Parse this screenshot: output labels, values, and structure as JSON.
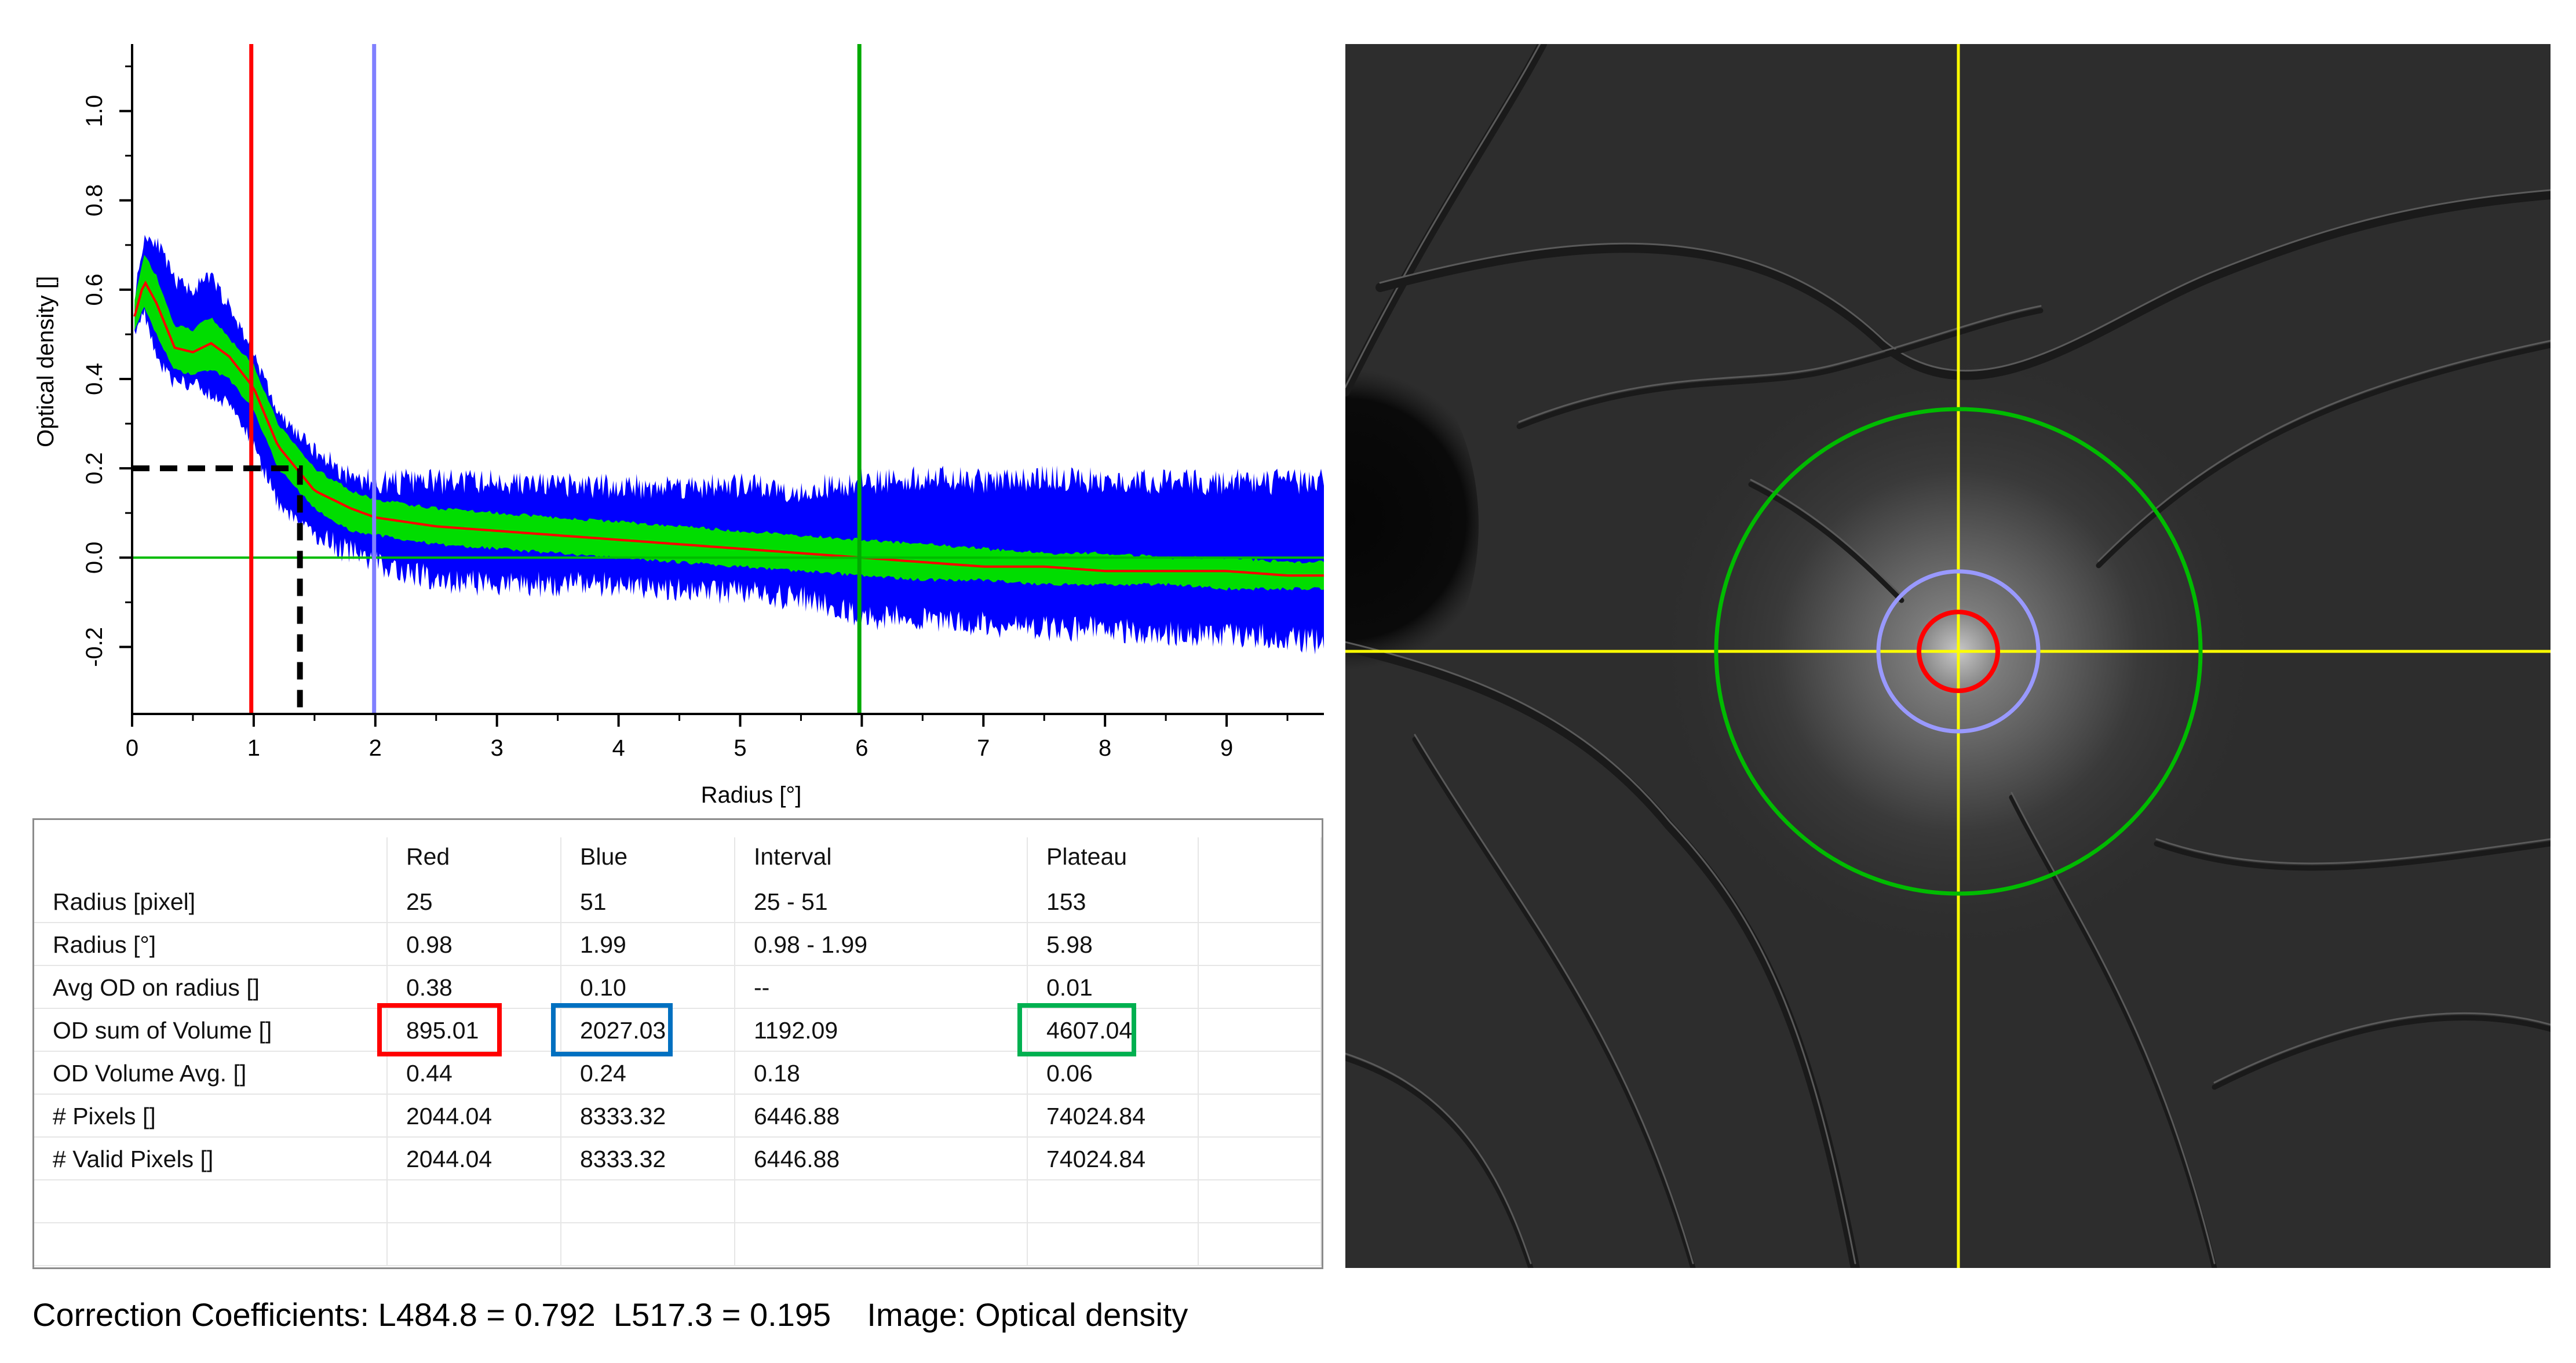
{
  "chart_data": {
    "type": "line",
    "xlabel": "Radius [°]",
    "ylabel": "Optical density []",
    "xlim": [
      0,
      9.8
    ],
    "ylim": [
      -0.35,
      1.15
    ],
    "x_ticks": [
      "0",
      "1",
      "2",
      "3",
      "4",
      "5",
      "6",
      "7",
      "8",
      "9"
    ],
    "y_ticks": [
      "-0.2",
      "0.0",
      "0.2",
      "0.4",
      "0.6",
      "0.8",
      "1.0"
    ],
    "series": [
      {
        "color": "#0000ff",
        "x": [
          0.0,
          0.1,
          0.2,
          0.35,
          0.5,
          0.65,
          0.8,
          1.0,
          1.2,
          1.5,
          1.8,
          2.0,
          2.5,
          3.0,
          3.5,
          4.0,
          4.5,
          5.0,
          5.5,
          6.0,
          6.5,
          7.0,
          7.5,
          8.0,
          8.5,
          9.0,
          9.5,
          9.8
        ],
        "upper": [
          0.55,
          0.72,
          0.71,
          0.62,
          0.6,
          0.63,
          0.56,
          0.46,
          0.32,
          0.24,
          0.18,
          0.17,
          0.17,
          0.17,
          0.16,
          0.16,
          0.16,
          0.16,
          0.15,
          0.17,
          0.18,
          0.17,
          0.18,
          0.17,
          0.17,
          0.17,
          0.17,
          0.17
        ],
        "lower": [
          0.5,
          0.55,
          0.45,
          0.39,
          0.39,
          0.36,
          0.35,
          0.25,
          0.12,
          0.05,
          0.01,
          -0.01,
          -0.05,
          -0.06,
          -0.06,
          -0.06,
          -0.07,
          -0.08,
          -0.09,
          -0.13,
          -0.14,
          -0.15,
          -0.16,
          -0.16,
          -0.17,
          -0.17,
          -0.18,
          -0.19
        ]
      },
      {
        "color": "#00dd00",
        "x": [
          0.0,
          0.1,
          0.2,
          0.35,
          0.5,
          0.65,
          0.8,
          1.0,
          1.2,
          1.5,
          1.8,
          2.0,
          2.5,
          3.0,
          3.5,
          4.0,
          4.5,
          5.0,
          5.5,
          6.0,
          6.5,
          7.0,
          7.5,
          8.0,
          8.5,
          9.0,
          9.5,
          9.8
        ],
        "upper": [
          0.55,
          0.68,
          0.63,
          0.52,
          0.51,
          0.54,
          0.49,
          0.43,
          0.3,
          0.2,
          0.15,
          0.13,
          0.11,
          0.1,
          0.09,
          0.08,
          0.07,
          0.06,
          0.05,
          0.04,
          0.03,
          0.02,
          0.01,
          0.01,
          0.0,
          0.0,
          -0.01,
          -0.01
        ],
        "lower": [
          0.5,
          0.56,
          0.5,
          0.42,
          0.41,
          0.42,
          0.4,
          0.33,
          0.2,
          0.11,
          0.06,
          0.05,
          0.03,
          0.02,
          0.01,
          0.0,
          -0.01,
          -0.02,
          -0.03,
          -0.04,
          -0.05,
          -0.05,
          -0.06,
          -0.06,
          -0.06,
          -0.07,
          -0.07,
          -0.07
        ]
      },
      {
        "color": "#ff0000",
        "x": [
          0.0,
          0.1,
          0.2,
          0.35,
          0.5,
          0.65,
          0.8,
          1.0,
          1.2,
          1.5,
          1.8,
          2.0,
          2.5,
          3.0,
          3.5,
          4.0,
          4.5,
          5.0,
          5.5,
          6.0,
          6.5,
          7.0,
          7.5,
          8.0,
          8.5,
          9.0,
          9.5,
          9.8
        ],
        "y": [
          0.52,
          0.62,
          0.57,
          0.47,
          0.46,
          0.48,
          0.45,
          0.38,
          0.25,
          0.15,
          0.11,
          0.09,
          0.07,
          0.06,
          0.05,
          0.04,
          0.03,
          0.02,
          0.01,
          0.0,
          -0.01,
          -0.02,
          -0.02,
          -0.03,
          -0.03,
          -0.03,
          -0.04,
          -0.04
        ]
      }
    ],
    "vlines": [
      {
        "x": 0.98,
        "color": "#ff0000"
      },
      {
        "x": 1.99,
        "color": "#8080ff"
      },
      {
        "x": 5.98,
        "color": "#00aa00"
      }
    ],
    "hline": {
      "y": 0.0,
      "color": "#00bb00"
    },
    "dashed_guide": {
      "x": 1.38,
      "y": 0.2,
      "color": "#000000"
    },
    "grid": false
  },
  "table": {
    "columns": [
      "",
      "Red",
      "Blue",
      "Interval",
      "Plateau",
      ""
    ],
    "rows": [
      [
        "Radius [pixel]",
        "25",
        "51",
        "25 - 51",
        "153",
        ""
      ],
      [
        "Radius [°]",
        "0.98",
        "1.99",
        "0.98 - 1.99",
        "5.98",
        ""
      ],
      [
        "Avg OD on radius []",
        "0.38",
        "0.10",
        "--",
        "0.01",
        ""
      ],
      [
        "OD sum of Volume []",
        "895.01",
        "2027.03",
        "1192.09",
        "4607.04",
        ""
      ],
      [
        "OD Volume Avg. []",
        "0.44",
        "0.24",
        "0.18",
        "0.06",
        ""
      ],
      [
        "# Pixels []",
        "2044.04",
        "8333.32",
        "6446.88",
        "74024.84",
        ""
      ],
      [
        "# Valid Pixels []",
        "2044.04",
        "8333.32",
        "6446.88",
        "74024.84",
        ""
      ],
      [
        "",
        "",
        "",
        "",
        "",
        ""
      ],
      [
        "",
        "",
        "",
        "",
        "",
        ""
      ]
    ],
    "highlights": [
      {
        "row": 3,
        "col": 1,
        "color": "#ff0000"
      },
      {
        "row": 3,
        "col": 2,
        "color": "#0070c0"
      },
      {
        "row": 3,
        "col": 4,
        "color": "#00b050"
      }
    ]
  },
  "fundus": {
    "crosshair_color": "#ffff00",
    "circles": [
      {
        "name": "red-circle",
        "color": "#ff0000"
      },
      {
        "name": "blue-circle",
        "color": "#9999ff"
      },
      {
        "name": "green-circle",
        "color": "#00bb00"
      }
    ]
  },
  "status": {
    "text": "Correction Coefficients: L484.8 = 0.792  L517.3 = 0.195    Image: Optical density"
  }
}
